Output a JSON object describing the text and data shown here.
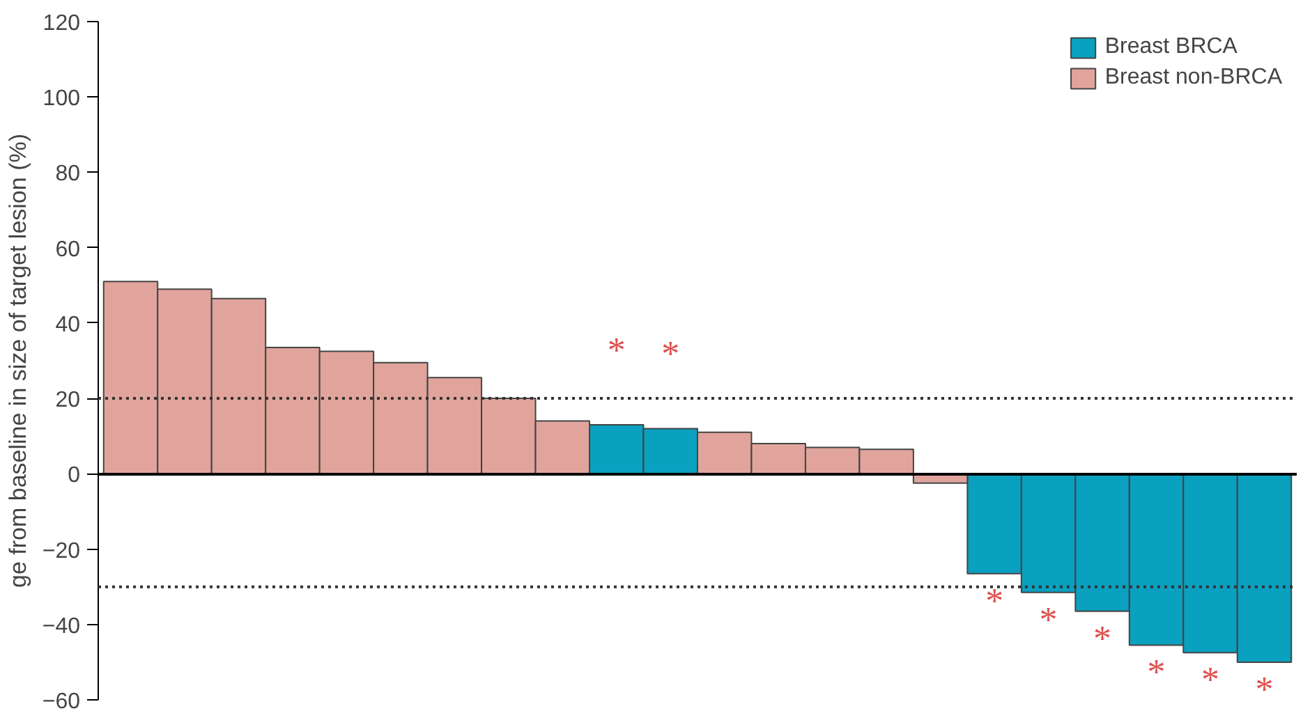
{
  "chart_data": {
    "type": "bar",
    "ylabel": "ge from baseline in size of target lesion (%)",
    "categories": [
      null,
      null,
      null,
      null,
      null,
      null,
      null,
      null,
      null,
      null,
      null,
      null,
      null,
      null,
      null,
      null,
      null,
      null,
      null,
      null,
      null,
      null
    ],
    "series": [
      {
        "name": "Breast BRCA",
        "color": "#0aa0c0",
        "values": [
          null,
          null,
          null,
          null,
          null,
          null,
          null,
          null,
          null,
          13,
          12,
          null,
          null,
          null,
          null,
          null,
          -26.5,
          -31.5,
          -36.5,
          -45.5,
          -47.5,
          -50
        ],
        "value_labels": [
          null,
          null,
          null,
          null,
          null,
          null,
          null,
          null,
          null,
          "*",
          "*",
          null,
          null,
          null,
          null,
          null,
          "*",
          "*",
          "*",
          "*",
          "*",
          "*"
        ]
      },
      {
        "name": "Breast non-BRCA",
        "color": "#e0a49c",
        "values": [
          51,
          49,
          46.5,
          33.5,
          32.5,
          29.5,
          25.5,
          20,
          14,
          null,
          null,
          11,
          8,
          7,
          6.5,
          -2.5,
          null,
          null,
          null,
          null,
          null,
          null
        ]
      }
    ],
    "ylim": [
      -60,
      120
    ],
    "yticks": [
      -60,
      -40,
      -20,
      0,
      20,
      40,
      60,
      80,
      100,
      120
    ],
    "ref_lines": [
      {
        "axis": "y",
        "value": 20,
        "line_style": "dotted"
      },
      {
        "axis": "y",
        "value": -30,
        "line_style": "dotted"
      }
    ],
    "grid": false,
    "legend": "top right"
  }
}
